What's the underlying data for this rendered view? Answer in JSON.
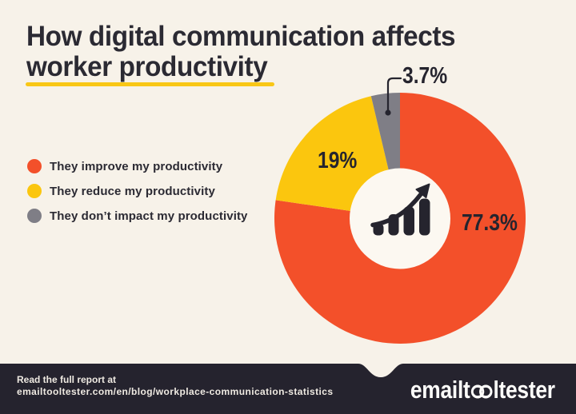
{
  "title": {
    "line1": "How digital communication affects",
    "line2": "worker productivity"
  },
  "colors": {
    "background": "#f7f2e9",
    "title_text": "#2b2a33",
    "underline": "#f9c716",
    "footer_bar": "#25232e",
    "footer_text": "#efeae2",
    "donut_hole": "#fcf8f1",
    "icon": "#25242e"
  },
  "chart_data": {
    "type": "pie",
    "donut": true,
    "title": "How digital communication affects worker productivity",
    "start_angle_deg": 0,
    "direction": "clockwise",
    "slices": [
      {
        "label": "They improve my productivity",
        "value": 77.3,
        "display": "77.3%",
        "color": "#f3502a"
      },
      {
        "label": "They reduce my productivity",
        "value": 19,
        "display": "19%",
        "color": "#fbc60e"
      },
      {
        "label": "They don’t impact my productivity",
        "value": 3.7,
        "display": "3.7%",
        "color": "#7f7e86"
      }
    ],
    "legend_position": "left",
    "center_icon": "growth-chart"
  },
  "footer": {
    "line1": "Read the full report at",
    "line2": "emailtooltester.com/en/blog/workplace-communication-statistics",
    "logo": {
      "name": "emailtooltester",
      "prefix": "emailt",
      "oo": "oo",
      "suffix": "ltester"
    }
  }
}
